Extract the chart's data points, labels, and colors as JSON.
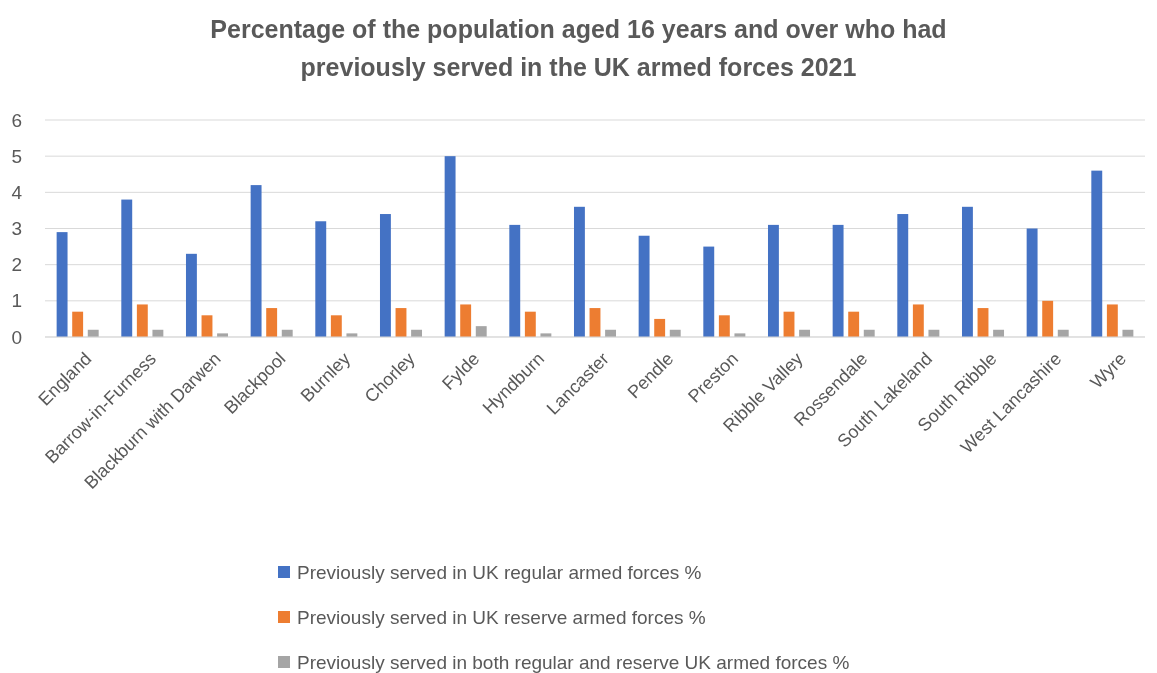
{
  "chart_data": {
    "type": "bar",
    "title": "Percentage of the population aged 16 years and over who had previously served in the UK armed forces 2021",
    "categories": [
      "England",
      "Barrow-in-Furness",
      "Blackburn with Darwen",
      "Blackpool",
      "Burnley",
      "Chorley",
      "Fylde",
      "Hyndburn",
      "Lancaster",
      "Pendle",
      "Preston",
      "Ribble Valley",
      "Rossendale",
      "South Lakeland",
      "South Ribble",
      "West Lancashire",
      "Wyre"
    ],
    "series": [
      {
        "name": "Previously served in UK regular armed forces %",
        "color": "#4472c4",
        "values": [
          2.9,
          3.8,
          2.3,
          4.2,
          3.2,
          3.4,
          5.0,
          3.1,
          3.6,
          2.8,
          2.5,
          3.1,
          3.1,
          3.4,
          3.6,
          3.0,
          4.6
        ]
      },
      {
        "name": "Previously served in UK reserve armed forces %",
        "color": "#ed7d31",
        "values": [
          0.7,
          0.9,
          0.6,
          0.8,
          0.6,
          0.8,
          0.9,
          0.7,
          0.8,
          0.5,
          0.6,
          0.7,
          0.7,
          0.9,
          0.8,
          1.0,
          0.9
        ]
      },
      {
        "name": "Previously served in both regular and reserve UK armed forces %",
        "color": "#a5a5a5",
        "values": [
          0.2,
          0.2,
          0.1,
          0.2,
          0.1,
          0.2,
          0.3,
          0.1,
          0.2,
          0.2,
          0.1,
          0.2,
          0.2,
          0.2,
          0.2,
          0.2,
          0.2
        ]
      }
    ],
    "ylim": [
      0,
      6
    ],
    "yticks": [
      0,
      1,
      2,
      3,
      4,
      5,
      6
    ],
    "grid": "y",
    "legend": "bottom"
  }
}
